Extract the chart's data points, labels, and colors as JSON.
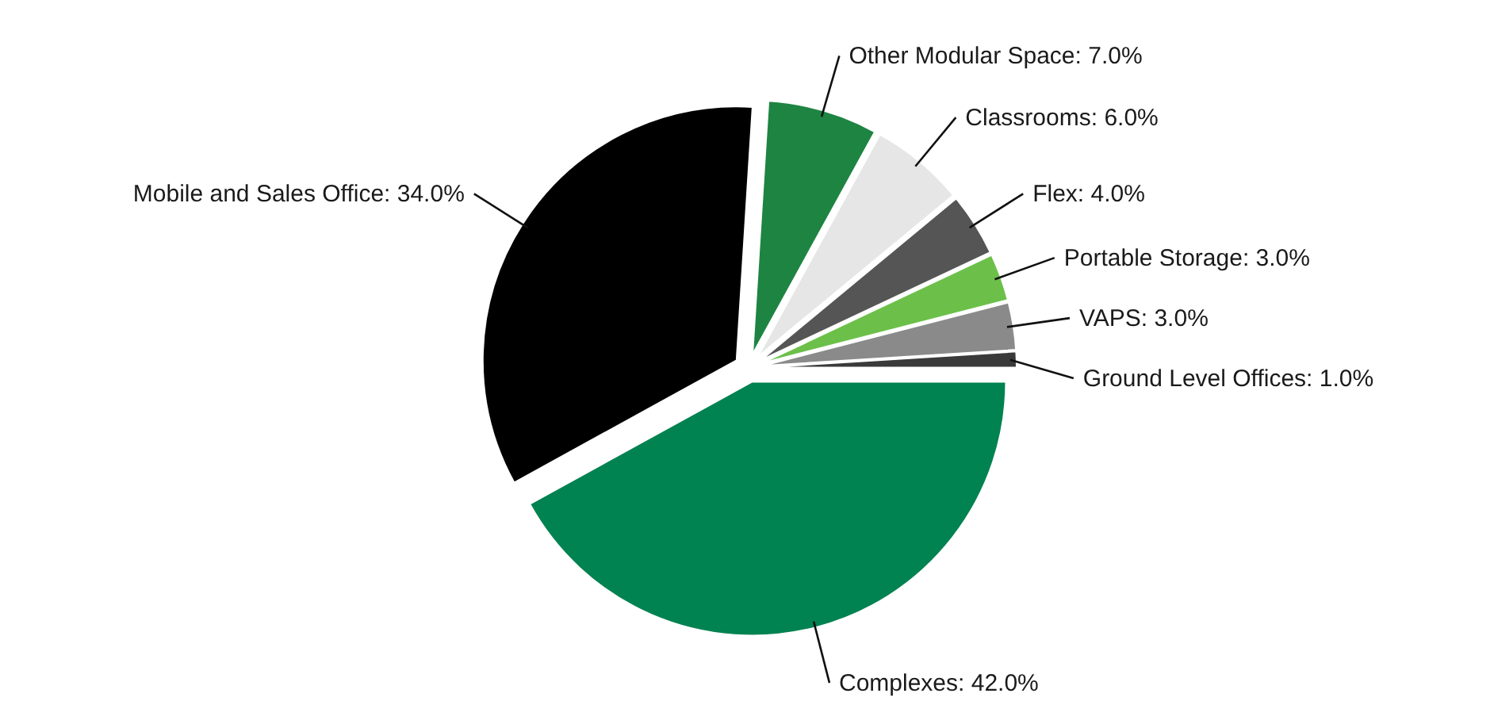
{
  "chart_data": {
    "type": "pie",
    "categories": [
      "Complexes",
      "Mobile and Sales Office",
      "Other Modular Space",
      "Classrooms",
      "Flex",
      "Portable Storage",
      "VAPS",
      "Ground Level Offices"
    ],
    "values": [
      42,
      34,
      7,
      6,
      4,
      3,
      3,
      1
    ],
    "colors": [
      "#008251",
      "#000000",
      "#1e8442",
      "#e6e6e6",
      "#555555",
      "#6cc04a",
      "#8a8a8a",
      "#3a3a3a"
    ],
    "value_labels": [
      "42.0%",
      "34.0%",
      "7.0%",
      "6.0%",
      "4.0%",
      "3.0%",
      "3.0%",
      "1.0%"
    ]
  }
}
